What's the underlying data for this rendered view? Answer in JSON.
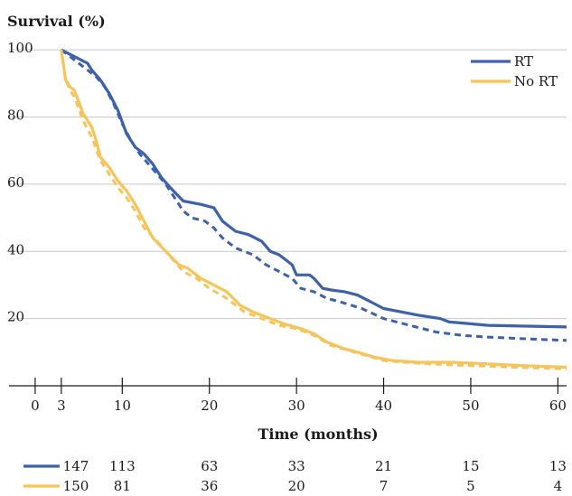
{
  "chart_data": {
    "type": "line",
    "ylabel": "Survival (%)",
    "xlabel": "Time (months)",
    "xlim": [
      -3,
      61
    ],
    "ylim": [
      0,
      103
    ],
    "x_ticks": [
      0,
      3,
      10,
      20,
      30,
      40,
      50,
      60
    ],
    "y_ticks": [
      20,
      40,
      60,
      80,
      100
    ],
    "grid": "horizontal",
    "legend_position": "top-right",
    "series": [
      {
        "name": "RT",
        "color": "#3d62a8",
        "style": "solid",
        "points": [
          [
            3,
            100
          ],
          [
            4.5,
            98
          ],
          [
            6,
            96
          ],
          [
            6.5,
            94
          ],
          [
            7.5,
            91
          ],
          [
            8.5,
            87
          ],
          [
            9.5,
            82
          ],
          [
            10.5,
            75
          ],
          [
            11.5,
            71
          ],
          [
            12.5,
            69
          ],
          [
            13.5,
            66
          ],
          [
            14.5,
            62
          ],
          [
            15.5,
            59
          ],
          [
            17,
            55
          ],
          [
            19,
            54
          ],
          [
            20.5,
            53
          ],
          [
            21.5,
            49
          ],
          [
            23,
            46
          ],
          [
            24.5,
            45
          ],
          [
            26,
            43
          ],
          [
            27,
            40
          ],
          [
            28,
            39
          ],
          [
            29,
            37
          ],
          [
            29.5,
            36
          ],
          [
            30,
            33
          ],
          [
            31.5,
            33
          ],
          [
            32,
            32
          ],
          [
            33,
            29
          ],
          [
            34,
            28.5
          ],
          [
            35.5,
            28
          ],
          [
            37,
            27
          ],
          [
            38.5,
            25
          ],
          [
            40,
            23
          ],
          [
            42,
            22
          ],
          [
            44,
            21
          ],
          [
            46.5,
            20
          ],
          [
            47.5,
            19
          ],
          [
            52,
            18
          ],
          [
            61,
            17.5
          ]
        ]
      },
      {
        "name": "RT (dashed)",
        "color": "#3d62a8",
        "style": "dashed",
        "points": [
          [
            3,
            100
          ],
          [
            4.5,
            97
          ],
          [
            6,
            94
          ],
          [
            7,
            92
          ],
          [
            8,
            89
          ],
          [
            9,
            84
          ],
          [
            10,
            78
          ],
          [
            11,
            73
          ],
          [
            12,
            69
          ],
          [
            13,
            66
          ],
          [
            14,
            63
          ],
          [
            15,
            60
          ],
          [
            16,
            56
          ],
          [
            17,
            52
          ],
          [
            18,
            50
          ],
          [
            19.5,
            49
          ],
          [
            20.5,
            47
          ],
          [
            21.5,
            44
          ],
          [
            23,
            41
          ],
          [
            25,
            39
          ],
          [
            26.5,
            36
          ],
          [
            28,
            34
          ],
          [
            29.5,
            32
          ],
          [
            30.5,
            29
          ],
          [
            32,
            28
          ],
          [
            33.5,
            26
          ],
          [
            35,
            25
          ],
          [
            37.5,
            23
          ],
          [
            40,
            20
          ],
          [
            43,
            18
          ],
          [
            46,
            16
          ],
          [
            49,
            15
          ],
          [
            52,
            14.5
          ],
          [
            56,
            14
          ],
          [
            61,
            13.5
          ]
        ]
      },
      {
        "name": "No RT",
        "color": "#f5c55c",
        "style": "solid",
        "points": [
          [
            3,
            100
          ],
          [
            3.5,
            91
          ],
          [
            4,
            89
          ],
          [
            4.5,
            88
          ],
          [
            5.5,
            81
          ],
          [
            6.5,
            77
          ],
          [
            7,
            73
          ],
          [
            7.5,
            68
          ],
          [
            8.5,
            65
          ],
          [
            9.5,
            61
          ],
          [
            10.5,
            58
          ],
          [
            11.5,
            54
          ],
          [
            12.5,
            49
          ],
          [
            13.5,
            44
          ],
          [
            15,
            40
          ],
          [
            16.5,
            36
          ],
          [
            17.5,
            35
          ],
          [
            19,
            32
          ],
          [
            20.5,
            30
          ],
          [
            22,
            28
          ],
          [
            23.5,
            24
          ],
          [
            25,
            22
          ],
          [
            27,
            20
          ],
          [
            28.5,
            18.5
          ],
          [
            30.5,
            17
          ],
          [
            32,
            15.5
          ],
          [
            33.5,
            13
          ],
          [
            35.5,
            11
          ],
          [
            37,
            10
          ],
          [
            39,
            8.5
          ],
          [
            41,
            7.5
          ],
          [
            44,
            7
          ],
          [
            48,
            7
          ],
          [
            52,
            6.5
          ],
          [
            56,
            6
          ],
          [
            61,
            5.5
          ]
        ]
      },
      {
        "name": "No RT (dashed)",
        "color": "#f5c55c",
        "style": "dashed",
        "points": [
          [
            3,
            100
          ],
          [
            3.5,
            91
          ],
          [
            4,
            88
          ],
          [
            4.5,
            86
          ],
          [
            5.5,
            79
          ],
          [
            6.5,
            74
          ],
          [
            7.5,
            67
          ],
          [
            8.5,
            63
          ],
          [
            9.5,
            59
          ],
          [
            10.5,
            56
          ],
          [
            11.5,
            52
          ],
          [
            12.5,
            47
          ],
          [
            14,
            43
          ],
          [
            16,
            37
          ],
          [
            17,
            34
          ],
          [
            18.5,
            32
          ],
          [
            20,
            29
          ],
          [
            22,
            26
          ],
          [
            24,
            22
          ],
          [
            26,
            20
          ],
          [
            28,
            18
          ],
          [
            30,
            17
          ],
          [
            32,
            15
          ],
          [
            34,
            12
          ],
          [
            36,
            10.5
          ],
          [
            38,
            9
          ],
          [
            40,
            7.5
          ],
          [
            45,
            6.5
          ],
          [
            50,
            6
          ],
          [
            55,
            5.5
          ],
          [
            61,
            5
          ]
        ]
      }
    ],
    "legend": [
      {
        "label": "RT",
        "color": "#3d62a8"
      },
      {
        "label": "No RT",
        "color": "#f5c55c"
      }
    ],
    "at_risk": {
      "times": [
        3,
        10,
        20,
        30,
        40,
        50,
        60
      ],
      "rows": [
        {
          "color": "#3d62a8",
          "values": [
            "147",
            "113",
            "63",
            "33",
            "21",
            "15",
            "13"
          ]
        },
        {
          "color": "#f5c55c",
          "values": [
            "150",
            "81",
            "36",
            "20",
            "7",
            "5",
            "4"
          ]
        }
      ]
    }
  }
}
